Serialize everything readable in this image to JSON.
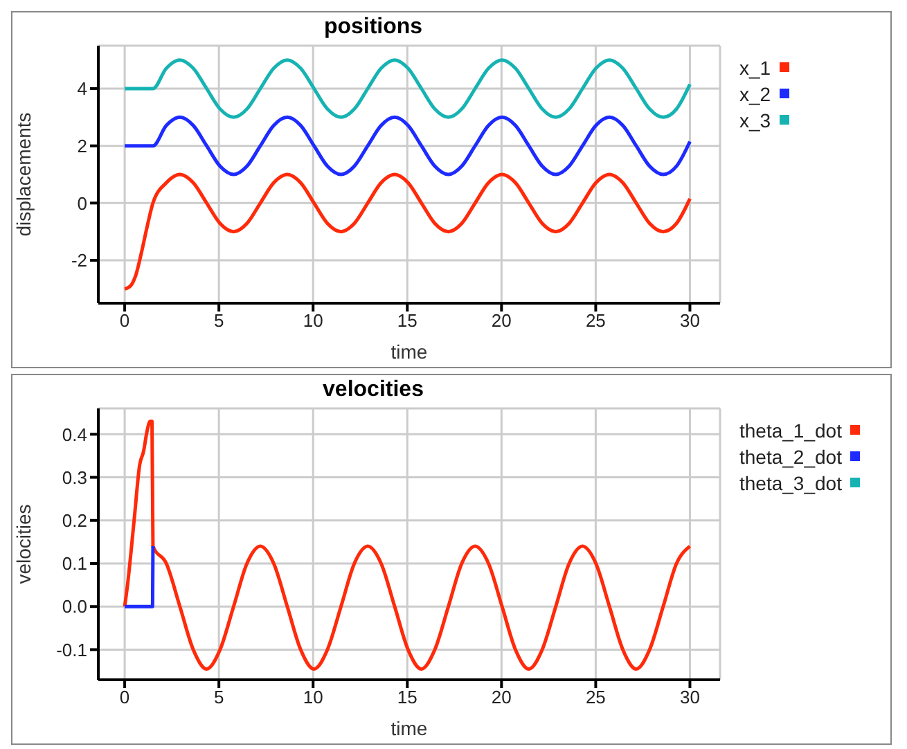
{
  "chart_data": [
    {
      "type": "line",
      "title": "positions",
      "xlabel": "time",
      "ylabel": "displacements",
      "xlim": [
        -1.4,
        31.6
      ],
      "ylim": [
        -3.5,
        5.5
      ],
      "xticks": [
        0,
        5,
        10,
        15,
        20,
        25,
        30
      ],
      "yticks": [
        -2,
        0,
        2,
        4
      ],
      "grid": true,
      "legend": "right",
      "line_style": "solid",
      "marker": "none",
      "x": [
        0,
        0.3,
        0.6,
        0.9,
        1.2,
        1.5,
        2.21,
        2.93,
        3.64,
        4.35,
        5.06,
        5.78,
        6.49,
        7.2,
        7.91,
        8.63,
        9.34,
        10.05,
        10.76,
        11.48,
        12.19,
        12.9,
        13.61,
        14.33,
        15.04,
        15.75,
        16.46,
        17.18,
        17.89,
        18.6,
        19.31,
        20.03,
        20.74,
        21.45,
        22.16,
        22.88,
        23.59,
        24.3,
        25.01,
        25.73,
        26.44,
        27.15,
        27.86,
        28.58,
        29.29,
        30
      ],
      "series": [
        {
          "name": "x_1",
          "color": "#ff2a0a",
          "values": [
            -3,
            -2.9,
            -2.5,
            -1.7,
            -0.8,
            0,
            0.71,
            1,
            0.71,
            0,
            -0.71,
            -1,
            -0.71,
            0,
            0.71,
            1,
            0.71,
            0,
            -0.71,
            -1,
            -0.71,
            0,
            0.71,
            1,
            0.71,
            0,
            -0.71,
            -1,
            -0.71,
            0,
            0.71,
            1,
            0.71,
            0,
            -0.71,
            -1,
            -0.71,
            0,
            0.71,
            1,
            0.71,
            0,
            -0.71,
            -1,
            -0.71,
            0.15
          ]
        },
        {
          "name": "x_2",
          "color": "#1e2bff",
          "values": [
            2,
            2,
            2,
            2,
            2,
            2,
            2.71,
            3,
            2.71,
            2,
            1.29,
            1,
            1.29,
            2,
            2.71,
            3,
            2.71,
            2,
            1.29,
            1,
            1.29,
            2,
            2.71,
            3,
            2.71,
            2,
            1.29,
            1,
            1.29,
            2,
            2.71,
            3,
            2.71,
            2,
            1.29,
            1,
            1.29,
            2,
            2.71,
            3,
            2.71,
            2,
            1.29,
            1,
            1.29,
            2.15
          ]
        },
        {
          "name": "x_3",
          "color": "#17b3b3",
          "values": [
            4,
            4,
            4,
            4,
            4,
            4,
            4.71,
            5,
            4.71,
            4,
            3.29,
            3,
            3.29,
            4,
            4.71,
            5,
            4.71,
            4,
            3.29,
            3,
            3.29,
            4,
            4.71,
            5,
            4.71,
            4,
            3.29,
            3,
            3.29,
            4,
            4.71,
            5,
            4.71,
            4,
            3.29,
            3,
            3.29,
            4,
            4.71,
            5,
            4.71,
            4,
            3.29,
            3,
            3.29,
            4.15
          ]
        }
      ]
    },
    {
      "type": "line",
      "title": "velocities",
      "xlabel": "time",
      "ylabel": "velocities",
      "xlim": [
        -1.4,
        31.6
      ],
      "ylim": [
        -0.17,
        0.46
      ],
      "xticks": [
        0,
        5,
        10,
        15,
        20,
        25,
        30
      ],
      "yticks": [
        -0.1,
        {
          "value": 0,
          "label": "0.0"
        },
        0.1,
        0.2,
        0.3,
        0.4
      ],
      "grid": true,
      "legend": "right",
      "line_style": "solid",
      "marker": "none",
      "series": [
        {
          "name": "theta_1_dot",
          "color": "#ff2a0a",
          "x": [
            0,
            0.15,
            0.5,
            0.8,
            1.0,
            1.2,
            1.35,
            1.45,
            1.5,
            2.21,
            2.93,
            3.64,
            4.35,
            5.06,
            5.78,
            6.49,
            7.2,
            7.91,
            8.63,
            9.34,
            10.05,
            10.76,
            11.48,
            12.19,
            12.9,
            13.61,
            14.33,
            15.04,
            15.75,
            16.46,
            17.18,
            17.89,
            18.6,
            19.31,
            20.03,
            20.74,
            21.45,
            22.16,
            22.88,
            23.59,
            24.3,
            25.01,
            25.73,
            26.44,
            27.15,
            27.86,
            28.58,
            29.29,
            30
          ],
          "values": [
            0,
            0.05,
            0.2,
            0.33,
            0.36,
            0.41,
            0.43,
            0.43,
            0.14,
            0.1,
            0,
            -0.1,
            -0.145,
            -0.1,
            0,
            0.1,
            0.14,
            0.1,
            0,
            -0.1,
            -0.145,
            -0.1,
            0,
            0.1,
            0.14,
            0.1,
            0,
            -0.1,
            -0.145,
            -0.1,
            0,
            0.1,
            0.14,
            0.1,
            0,
            -0.1,
            -0.145,
            -0.1,
            0,
            0.1,
            0.14,
            0.1,
            0,
            -0.1,
            -0.145,
            -0.1,
            0,
            0.1,
            0.14
          ]
        },
        {
          "name": "theta_2_dot",
          "color": "#1e2bff",
          "x": [
            0,
            1.48,
            1.5
          ],
          "values": [
            0,
            0,
            0.14
          ]
        },
        {
          "name": "theta_3_dot",
          "color": "#17b3b3"
        }
      ]
    }
  ]
}
